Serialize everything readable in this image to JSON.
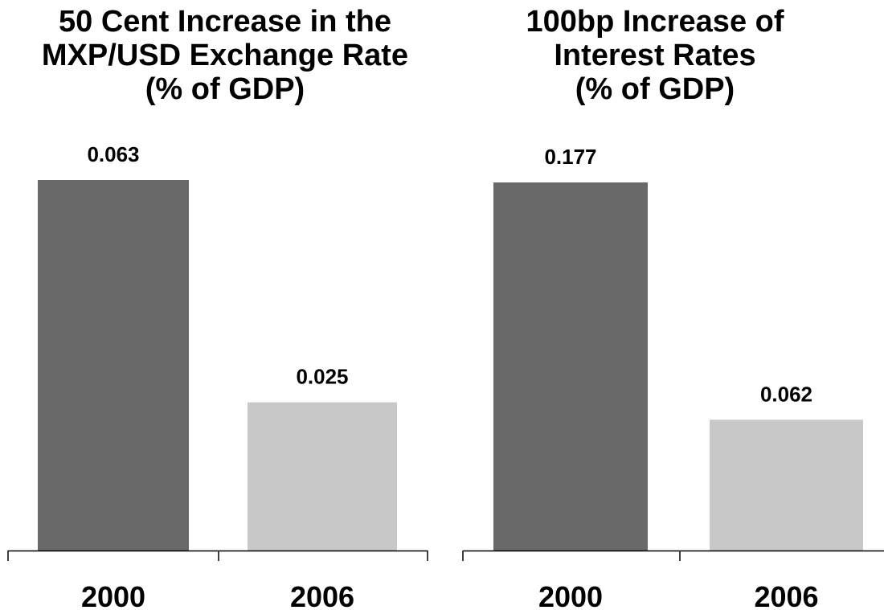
{
  "colors": {
    "bar_2000": "#696969",
    "bar_2006": "#c8c8c8",
    "axis": "#000000",
    "text": "#000000"
  },
  "chart_data": [
    {
      "type": "bar",
      "title": "50 Cent Increase in the MXP/USD Exchange Rate (% of GDP)",
      "title_lines": [
        "50 Cent Increase in the",
        "MXP/USD Exchange Rate",
        "(% of GDP)"
      ],
      "categories": [
        "2000",
        "2006"
      ],
      "values": [
        0.063,
        0.025
      ],
      "data_labels": [
        "0.063",
        "0.025"
      ],
      "ylim": [
        0,
        0.0625
      ],
      "xlabel": "",
      "ylabel": "",
      "grid": false,
      "legend": "none"
    },
    {
      "type": "bar",
      "title": "100bp Increase of Interest Rates (% of GDP)",
      "title_lines": [
        "100bp Increase of",
        "Interest Rates",
        "(% of GDP)"
      ],
      "categories": [
        "2000",
        "2006"
      ],
      "values": [
        0.177,
        0.062
      ],
      "data_labels": [
        "0.177",
        "0.062"
      ],
      "ylim": [
        0,
        0.1745
      ],
      "xlabel": "",
      "ylabel": "",
      "grid": false,
      "legend": "none"
    }
  ]
}
